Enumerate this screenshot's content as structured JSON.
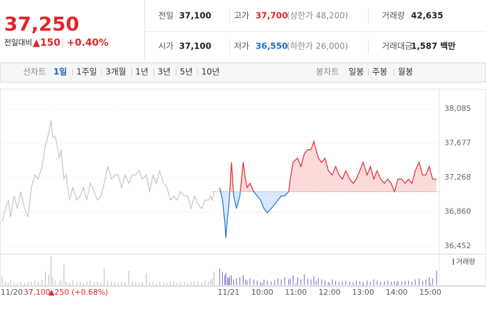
{
  "header": {
    "price": "37,250",
    "change_label": "전일대비",
    "change": "▲150",
    "change_pct": "+0.40%",
    "stats": [
      {
        "label": "전일",
        "value": "37,100"
      },
      {
        "label": "고가",
        "value": "37,700",
        "note": "(상한가 48,200)"
      },
      {
        "label": "거래량",
        "value": "42,635"
      },
      {
        "label": "시가",
        "value": "37,100"
      },
      {
        "label": "저가",
        "value": "36,550",
        "note": "(하한가 26,000)"
      },
      {
        "label": "거래대금",
        "value": "1,587 백만"
      }
    ]
  },
  "tabs": {
    "line_label": "선차트",
    "line_periods": [
      "1일",
      "1주일",
      "3개월",
      "1년",
      "3년",
      "5년",
      "10년"
    ],
    "candle_label": "봉차트",
    "candle_periods": [
      "일봉",
      "주봉",
      "월봉"
    ]
  },
  "chart_data": {
    "type": "line",
    "grid": true,
    "baseline": 37100,
    "xlim": [
      -408,
      375
    ],
    "ylim": [
      36370,
      38185
    ],
    "yticks": [
      {
        "value": 38085,
        "label": "38,085"
      },
      {
        "value": 37677,
        "label": "37,677"
      },
      {
        "value": 37268,
        "label": "37,268"
      },
      {
        "value": 36860,
        "label": "36,860"
      },
      {
        "value": 36452,
        "label": "36,452"
      }
    ],
    "xticks": [
      {
        "value": 0,
        "label": "11/21"
      },
      {
        "value": 60,
        "label": "10:00"
      },
      {
        "value": 120,
        "label": "11:00"
      },
      {
        "value": 180,
        "label": "12:00"
      },
      {
        "value": 240,
        "label": "13:00"
      },
      {
        "value": 300,
        "label": "14:00"
      },
      {
        "value": 360,
        "label": "15:00"
      }
    ],
    "volume_label": "거래량",
    "prev_session": {
      "date": "11/20",
      "close": "37,100",
      "change": "▲250 (+0.68%)"
    },
    "series": [
      {
        "color": "#c4c4c4",
        "volume_color": "#c4c4c4",
        "x": [
          -404,
          -398,
          -393,
          -389,
          -383,
          -377,
          -371,
          -364,
          -358,
          -352,
          -346,
          -340,
          -333,
          -327,
          -321,
          -317,
          -314,
          -309,
          -302,
          -299,
          -294,
          -290,
          -284,
          -278,
          -271,
          -265,
          -259,
          -253,
          -247,
          -240,
          -234,
          -228,
          -222,
          -216,
          -209,
          -203,
          -197,
          -191,
          -185,
          -178,
          -172,
          -166,
          -160,
          -154,
          -147,
          -141,
          -135,
          -129,
          -123,
          -116,
          -110,
          -104,
          -98,
          -92,
          -86,
          -79,
          -73,
          -67,
          -61,
          -55,
          -48,
          -42,
          -36,
          -32,
          -29,
          -26
        ],
        "values": [
          36750,
          36900,
          37000,
          36800,
          37050,
          36900,
          37100,
          36900,
          36800,
          37150,
          37300,
          37250,
          37400,
          37650,
          37800,
          37950,
          37750,
          37750,
          37500,
          37600,
          37250,
          37300,
          37000,
          37150,
          37000,
          37050,
          37150,
          37000,
          37200,
          37100,
          37000,
          37050,
          37200,
          37400,
          37250,
          37300,
          37300,
          37150,
          37300,
          37200,
          37300,
          37300,
          37350,
          37250,
          37300,
          37100,
          37300,
          37200,
          37350,
          37200,
          37150,
          37000,
          37050,
          37000,
          37100,
          37050,
          37050,
          36900,
          37050,
          36950,
          36900,
          37000,
          37000,
          37050,
          37000,
          37100
        ],
        "volume": [
          800,
          300,
          200,
          400,
          250,
          150,
          300,
          200,
          250,
          300,
          400,
          350,
          500,
          1200,
          900,
          2600,
          700,
          400,
          300,
          500,
          1900,
          300,
          200,
          400,
          250,
          300,
          200,
          350,
          400,
          250,
          300,
          200,
          1500,
          400,
          300,
          250,
          200,
          300,
          250,
          1300,
          350,
          300,
          200,
          250,
          1100,
          300,
          250,
          200,
          300,
          250,
          200,
          350,
          300,
          200,
          250,
          300,
          200,
          250,
          300,
          350,
          250,
          400,
          300,
          500,
          600,
          1200
        ]
      },
      {
        "color": "#e0262b",
        "color_below": "#1f6fd1",
        "fill": "#fbdada",
        "fill_below": "#d9e8fb",
        "volume_color": "#8a7cc4",
        "x": [
          -16,
          -11,
          -7,
          -5,
          -2,
          0,
          2,
          5,
          9,
          14,
          20,
          26,
          30,
          33,
          38,
          45,
          51,
          57,
          63,
          69,
          76,
          82,
          88,
          94,
          100,
          107,
          110,
          115,
          123,
          129,
          135,
          141,
          147,
          152,
          156,
          160,
          166,
          172,
          178,
          185,
          191,
          197,
          203,
          209,
          216,
          222,
          228,
          234,
          240,
          247,
          253,
          259,
          265,
          271,
          278,
          284,
          290,
          296,
          302,
          309,
          315,
          321,
          327,
          333,
          340,
          346,
          352,
          358,
          364,
          371
        ],
        "values": [
          37150,
          37000,
          36750,
          36550,
          36800,
          36900,
          37100,
          37450,
          37050,
          36900,
          37050,
          37450,
          37250,
          37150,
          37200,
          37100,
          37050,
          37000,
          36900,
          36850,
          36900,
          36950,
          37000,
          37050,
          37050,
          37100,
          37250,
          37450,
          37500,
          37400,
          37550,
          37600,
          37600,
          37700,
          37600,
          37500,
          37450,
          37500,
          37350,
          37300,
          37400,
          37300,
          37250,
          37350,
          37250,
          37200,
          37250,
          37350,
          37450,
          37300,
          37400,
          37250,
          37350,
          37250,
          37200,
          37250,
          37200,
          37100,
          37250,
          37250,
          37200,
          37250,
          37200,
          37350,
          37450,
          37300,
          37300,
          37400,
          37250,
          37250
        ],
        "volume": [
          1500,
          1200,
          900,
          1100,
          700,
          600,
          800,
          900,
          500,
          600,
          700,
          900,
          500,
          400,
          600,
          500,
          400,
          300,
          500,
          400,
          300,
          400,
          600,
          500,
          700,
          500,
          600,
          900,
          700,
          500,
          1000,
          600,
          500,
          800,
          400,
          600,
          500,
          400,
          300,
          500,
          400,
          300,
          350,
          400,
          300,
          250,
          400,
          350,
          300,
          400,
          300,
          500,
          400,
          300,
          350,
          400,
          300,
          350,
          400,
          300,
          350,
          400,
          300,
          500,
          600,
          400,
          500,
          700,
          600,
          1300
        ]
      }
    ]
  }
}
